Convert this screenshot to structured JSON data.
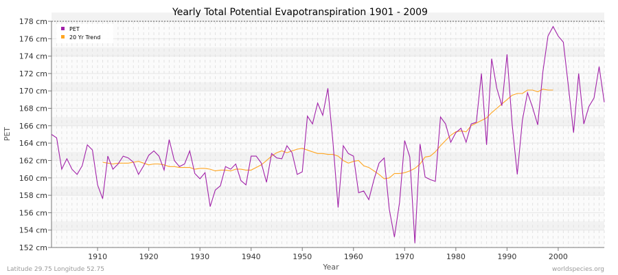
{
  "chart_data": {
    "type": "line",
    "title": "Yearly Total Potential Evapotranspiration 1901 - 2009",
    "xlabel": "Year",
    "ylabel": "PET",
    "xlim": [
      1901,
      2009
    ],
    "ylim": [
      152,
      178
    ],
    "y_unit": "cm",
    "x_ticks": [
      1910,
      1920,
      1930,
      1940,
      1950,
      1960,
      1970,
      1980,
      1990,
      2000
    ],
    "y_ticks": [
      152,
      154,
      156,
      158,
      160,
      162,
      164,
      166,
      168,
      170,
      172,
      174,
      176,
      178
    ],
    "y_tick_labels": [
      "152 cm",
      "154 cm",
      "156 cm",
      "158 cm",
      "160 cm",
      "162 cm",
      "164 cm",
      "166 cm",
      "168 cm",
      "170 cm",
      "172 cm",
      "174 cm",
      "176 cm",
      "178 cm"
    ],
    "grid": true,
    "legend_position": "top-left",
    "series": [
      {
        "name": "PET",
        "color": "#a020a8",
        "x_start": 1901,
        "values": [
          165.0,
          164.6,
          161.0,
          162.2,
          161.0,
          160.4,
          161.4,
          163.8,
          163.2,
          159.2,
          157.6,
          162.5,
          161.0,
          161.6,
          162.5,
          162.3,
          161.8,
          160.4,
          161.4,
          162.6,
          163.1,
          162.5,
          160.9,
          164.4,
          162.0,
          161.3,
          161.6,
          163.1,
          160.5,
          159.9,
          160.6,
          156.7,
          158.6,
          159.1,
          161.3,
          161.0,
          161.6,
          159.7,
          159.2,
          162.5,
          162.5,
          161.7,
          159.5,
          162.8,
          162.3,
          162.2,
          163.7,
          162.9,
          160.4,
          160.7,
          167.1,
          166.2,
          168.6,
          167.2,
          170.3,
          164.0,
          156.6,
          163.7,
          162.8,
          162.5,
          158.3,
          158.5,
          157.5,
          159.8,
          161.7,
          162.3,
          156.4,
          153.2,
          157.2,
          164.3,
          162.4,
          152.5,
          163.9,
          160.1,
          159.8,
          159.6,
          167.0,
          166.2,
          164.1,
          165.2,
          165.7,
          164.1,
          166.2,
          166.4,
          172.0,
          163.8,
          173.7,
          170.3,
          168.3,
          174.2,
          166.2,
          160.4,
          166.6,
          169.8,
          168.1,
          166.1,
          172.2,
          176.3,
          177.4,
          176.3,
          175.6,
          170.5,
          165.2,
          172.0,
          166.2,
          168.2,
          169.2,
          172.8,
          168.7
        ]
      },
      {
        "name": "20 Yr Trend",
        "color": "#ffa520",
        "x_start": 1911,
        "values": [
          161.8,
          161.7,
          161.6,
          161.7,
          161.7,
          161.7,
          161.8,
          161.9,
          161.7,
          161.5,
          161.6,
          161.6,
          161.5,
          161.3,
          161.3,
          161.2,
          161.2,
          161.2,
          161.0,
          161.1,
          161.1,
          161.0,
          160.8,
          160.9,
          160.9,
          160.8,
          161.0,
          161.0,
          160.9,
          160.9,
          161.2,
          161.5,
          162.0,
          162.5,
          162.9,
          163.1,
          162.9,
          163.1,
          163.3,
          163.4,
          163.2,
          163.0,
          162.8,
          162.8,
          162.7,
          162.7,
          162.5,
          162.0,
          161.7,
          161.9,
          162.0,
          161.4,
          161.2,
          160.8,
          160.4,
          159.9,
          160.0,
          160.5,
          160.5,
          160.6,
          160.8,
          161.1,
          161.6,
          162.4,
          162.5,
          163.0,
          163.7,
          164.3,
          164.9,
          165.3,
          165.4,
          165.3,
          166.0,
          166.3,
          166.6,
          166.9,
          167.5,
          168.0,
          168.5,
          169.0,
          169.5,
          169.7,
          169.7,
          170.1,
          170.1,
          169.9,
          170.2,
          170.1,
          170.1
        ]
      }
    ]
  },
  "footer": {
    "location": "Latitude 29.75 Longitude 52.75",
    "source": "worldspecies.org"
  }
}
